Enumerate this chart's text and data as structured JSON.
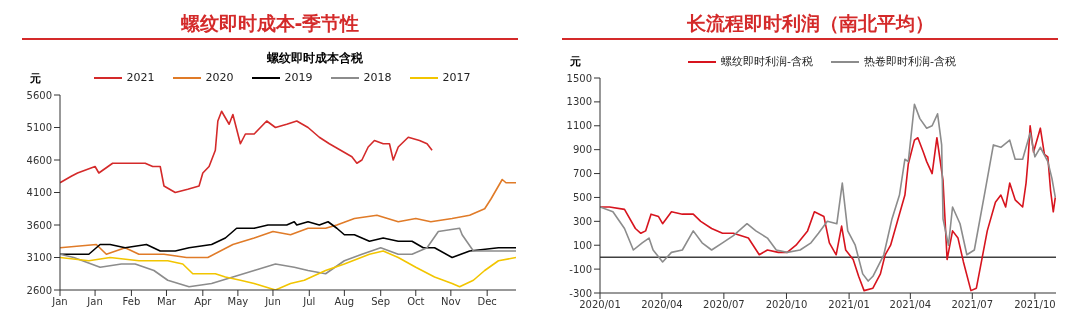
{
  "chart_data": [
    {
      "type": "line",
      "title": "螺纹即时成本-季节性",
      "subtitle": "螺纹即时成本含税",
      "ylabel": "元",
      "legend": "top",
      "marker": "none",
      "line_style": "solid",
      "xlim": [
        "--01-01",
        "--12-31"
      ],
      "xticks": [
        {
          "value": "--01-01",
          "label": "Jan"
        },
        {
          "value": "--01-29",
          "label": "Jan"
        },
        {
          "value": "--02-27",
          "label": "Feb"
        },
        {
          "value": "--03-27",
          "label": "Mar"
        },
        {
          "value": "--04-25",
          "label": "Apr"
        },
        {
          "value": "--05-23",
          "label": "May"
        },
        {
          "value": "--06-20",
          "label": "Jun"
        },
        {
          "value": "--07-19",
          "label": "Jul"
        },
        {
          "value": "--08-16",
          "label": "Aug"
        },
        {
          "value": "--09-14",
          "label": "Sep"
        },
        {
          "value": "--10-12",
          "label": "Oct"
        },
        {
          "value": "--11-09",
          "label": "Nov"
        },
        {
          "value": "--12-08",
          "label": "Dec"
        }
      ],
      "ylim": [
        2600,
        5600
      ],
      "yticks": [
        2600,
        3100,
        3600,
        4100,
        4600,
        5100,
        5600
      ],
      "series": [
        {
          "name": "2021",
          "color": "#d42a2a",
          "x": [
            "--01-01",
            "--01-10",
            "--01-15",
            "--01-29",
            "--02-01",
            "--02-12",
            "--02-27",
            "--03-10",
            "--03-16",
            "--03-22",
            "--03-25",
            "--04-03",
            "--04-13",
            "--04-22",
            "--04-25",
            "--04-30",
            "--05-05",
            "--05-07",
            "--05-10",
            "--05-16",
            "--05-19",
            "--05-25",
            "--05-29",
            "--06-05",
            "--06-15",
            "--06-22",
            "--07-01",
            "--07-09",
            "--07-18",
            "--07-27",
            "--08-04",
            "--08-13",
            "--08-22",
            "--08-26",
            "--08-30",
            "--09-04",
            "--09-09",
            "--09-16",
            "--09-21",
            "--09-24",
            "--09-28",
            "--10-06",
            "--10-15",
            "--10-21",
            "--10-25"
          ],
          "values": [
            4250,
            4350,
            4400,
            4500,
            4400,
            4550,
            4550,
            4550,
            4500,
            4500,
            4200,
            4100,
            4150,
            4200,
            4400,
            4500,
            4750,
            5200,
            5350,
            5150,
            5300,
            4850,
            5000,
            5000,
            5200,
            5100,
            5150,
            5200,
            5100,
            4950,
            4850,
            4750,
            4650,
            4550,
            4600,
            4800,
            4900,
            4850,
            4850,
            4600,
            4800,
            4950,
            4900,
            4850,
            4750
          ]
        },
        {
          "name": "2020",
          "color": "#e07b28",
          "x": [
            "--01-01",
            "--01-30",
            "--02-07",
            "--02-22",
            "--03-05",
            "--03-25",
            "--04-12",
            "--04-29",
            "--05-19",
            "--06-05",
            "--06-20",
            "--07-04",
            "--07-18",
            "--08-01",
            "--08-10",
            "--08-24",
            "--09-11",
            "--09-28",
            "--10-12",
            "--10-24",
            "--11-10",
            "--11-24",
            "--12-06",
            "--12-11",
            "--12-17",
            "--12-20",
            "--12-23",
            "--12-31"
          ],
          "values": [
            3250,
            3300,
            3150,
            3250,
            3150,
            3150,
            3100,
            3100,
            3300,
            3400,
            3500,
            3450,
            3550,
            3550,
            3600,
            3700,
            3750,
            3650,
            3700,
            3650,
            3700,
            3750,
            3850,
            4000,
            4200,
            4300,
            4250,
            4250
          ]
        },
        {
          "name": "2019",
          "color": "#000000",
          "x": [
            "--01-01",
            "--01-07",
            "--01-24",
            "--02-02",
            "--02-10",
            "--02-22",
            "--03-11",
            "--03-22",
            "--04-03",
            "--04-14",
            "--05-02",
            "--05-13",
            "--05-22",
            "--06-05",
            "--06-16",
            "--07-01",
            "--07-07",
            "--07-09",
            "--07-18",
            "--07-27",
            "--08-03",
            "--08-10",
            "--08-16",
            "--08-24",
            "--09-05",
            "--09-16",
            "--09-28",
            "--10-09",
            "--10-18",
            "--10-27",
            "--11-10",
            "--11-24",
            "--12-17",
            "--12-31"
          ],
          "values": [
            3150,
            3150,
            3150,
            3300,
            3300,
            3250,
            3300,
            3200,
            3200,
            3250,
            3300,
            3400,
            3550,
            3550,
            3600,
            3600,
            3650,
            3600,
            3650,
            3600,
            3650,
            3550,
            3450,
            3450,
            3350,
            3400,
            3350,
            3350,
            3250,
            3250,
            3100,
            3200,
            3250,
            3250
          ]
        },
        {
          "name": "2018",
          "color": "#8c8c8c",
          "x": [
            "--01-01",
            "--01-12",
            "--02-02",
            "--02-19",
            "--03-02",
            "--03-17",
            "--03-28",
            "--04-14",
            "--05-02",
            "--05-19",
            "--06-05",
            "--06-22",
            "--07-07",
            "--07-18",
            "--08-01",
            "--08-16",
            "--08-30",
            "--09-14",
            "--09-28",
            "--10-09",
            "--10-21",
            "--10-30",
            "--11-16",
            "--11-18",
            "--11-27",
            "--12-17",
            "--12-31"
          ],
          "values": [
            3150,
            3100,
            2950,
            3000,
            3000,
            2900,
            2750,
            2650,
            2700,
            2800,
            2900,
            3000,
            2950,
            2900,
            2850,
            3050,
            3150,
            3250,
            3150,
            3150,
            3250,
            3500,
            3550,
            3450,
            3200,
            3200,
            3200
          ]
        },
        {
          "name": "2017",
          "color": "#f2c500",
          "x": [
            "--01-01",
            "--01-24",
            "--02-10",
            "--03-05",
            "--03-28",
            "--04-09",
            "--04-17",
            "--05-05",
            "--05-13",
            "--05-25",
            "--06-05",
            "--06-22",
            "--07-04",
            "--07-15",
            "--08-01",
            "--08-16",
            "--09-05",
            "--09-16",
            "--09-28",
            "--10-12",
            "--10-27",
            "--11-10",
            "--11-16",
            "--11-27",
            "--12-06",
            "--12-17",
            "--12-31"
          ],
          "values": [
            3100,
            3050,
            3100,
            3050,
            3050,
            3000,
            2850,
            2850,
            2800,
            2750,
            2700,
            2600,
            2700,
            2750,
            2900,
            3000,
            3150,
            3200,
            3100,
            2950,
            2800,
            2700,
            2650,
            2750,
            2900,
            3050,
            3100
          ]
        }
      ]
    },
    {
      "type": "line",
      "title": "长流程即时利润（南北平均）",
      "ylabel": "元",
      "legend": "top",
      "marker": "none",
      "line_style": "solid",
      "xlim": [
        "2020-01-01",
        "2021-11-01"
      ],
      "xticks": [
        {
          "value": "2020-01",
          "label": "2020/01"
        },
        {
          "value": "2020-04",
          "label": "2020/04"
        },
        {
          "value": "2020-07",
          "label": "2020/07"
        },
        {
          "value": "2020-10",
          "label": "2020/10"
        },
        {
          "value": "2021-01",
          "label": "2021/01"
        },
        {
          "value": "2021-04",
          "label": "2021/04"
        },
        {
          "value": "2021-07",
          "label": "2021/07"
        },
        {
          "value": "2021-10",
          "label": "2021/10"
        }
      ],
      "ylim": [
        -300,
        1500
      ],
      "yticks": [
        -300,
        -100,
        100,
        300,
        500,
        700,
        900,
        1100,
        1300,
        1500
      ],
      "ref_lines": [
        {
          "axis": "y",
          "value": 0,
          "color": "#404040"
        }
      ],
      "series": [
        {
          "name": "螺纹即时利润-含税",
          "color": "#d7141e",
          "x": [
            "2020-01-01",
            "2020-01-15",
            "2020-02-06",
            "2020-02-22",
            "2020-03-01",
            "2020-03-08",
            "2020-03-16",
            "2020-03-27",
            "2020-04-02",
            "2020-04-15",
            "2020-05-01",
            "2020-05-17",
            "2020-05-28",
            "2020-06-13",
            "2020-06-29",
            "2020-07-15",
            "2020-08-06",
            "2020-08-22",
            "2020-09-03",
            "2020-09-19",
            "2020-10-02",
            "2020-10-15",
            "2020-11-01",
            "2020-11-11",
            "2020-11-25",
            "2020-12-03",
            "2020-12-13",
            "2020-12-21",
            "2020-12-27",
            "2021-01-07",
            "2021-01-15",
            "2021-01-23",
            "2021-02-05",
            "2021-02-16",
            "2021-02-23",
            "2021-03-03",
            "2021-03-13",
            "2021-03-24",
            "2021-03-29",
            "2021-04-07",
            "2021-04-12",
            "2021-04-20",
            "2021-04-25",
            "2021-05-03",
            "2021-05-10",
            "2021-05-19",
            "2021-05-25",
            "2021-06-02",
            "2021-06-10",
            "2021-06-18",
            "2021-06-29",
            "2021-07-07",
            "2021-07-15",
            "2021-07-23",
            "2021-08-04",
            "2021-08-12",
            "2021-08-19",
            "2021-08-25",
            "2021-09-02",
            "2021-09-13",
            "2021-09-18",
            "2021-09-21",
            "2021-09-24",
            "2021-09-29",
            "2021-10-09",
            "2021-10-15",
            "2021-10-20",
            "2021-10-24",
            "2021-10-28",
            "2021-10-31"
          ],
          "values": [
            420,
            420,
            400,
            240,
            200,
            220,
            360,
            340,
            280,
            380,
            360,
            360,
            300,
            240,
            200,
            200,
            160,
            20,
            60,
            40,
            40,
            100,
            220,
            380,
            340,
            120,
            20,
            260,
            60,
            -20,
            -160,
            -280,
            -260,
            -140,
            20,
            100,
            300,
            520,
            780,
            980,
            1000,
            880,
            800,
            700,
            1000,
            640,
            -20,
            220,
            160,
            -40,
            -280,
            -260,
            -20,
            220,
            460,
            520,
            420,
            620,
            480,
            420,
            620,
            820,
            1100,
            880,
            1080,
            860,
            840,
            560,
            380,
            500
          ]
        },
        {
          "name": "热卷即时利润-含税",
          "color": "#8c8c8c",
          "x": [
            "2020-01-01",
            "2020-01-20",
            "2020-02-06",
            "2020-02-19",
            "2020-03-03",
            "2020-03-13",
            "2020-03-19",
            "2020-04-02",
            "2020-04-15",
            "2020-05-01",
            "2020-05-17",
            "2020-05-30",
            "2020-06-13",
            "2020-06-29",
            "2020-07-15",
            "2020-08-04",
            "2020-08-17",
            "2020-09-03",
            "2020-09-16",
            "2020-10-02",
            "2020-10-21",
            "2020-11-06",
            "2020-11-17",
            "2020-11-30",
            "2020-12-14",
            "2020-12-22",
            "2020-12-30",
            "2021-01-10",
            "2021-01-21",
            "2021-01-29",
            "2021-02-05",
            "2021-02-21",
            "2021-03-05",
            "2021-03-16",
            "2021-03-24",
            "2021-03-29",
            "2021-04-07",
            "2021-04-15",
            "2021-04-25",
            "2021-05-03",
            "2021-05-11",
            "2021-05-17",
            "2021-05-19",
            "2021-05-27",
            "2021-06-02",
            "2021-06-13",
            "2021-06-23",
            "2021-07-04",
            "2021-07-20",
            "2021-08-01",
            "2021-08-12",
            "2021-08-25",
            "2021-09-02",
            "2021-09-13",
            "2021-09-24",
            "2021-10-01",
            "2021-10-09",
            "2021-10-20",
            "2021-10-26",
            "2021-10-31"
          ],
          "values": [
            420,
            380,
            240,
            60,
            120,
            160,
            60,
            -40,
            40,
            60,
            220,
            120,
            60,
            120,
            180,
            280,
            220,
            160,
            60,
            40,
            60,
            120,
            200,
            300,
            280,
            620,
            220,
            100,
            -140,
            -200,
            -160,
            20,
            320,
            520,
            820,
            800,
            1280,
            1160,
            1080,
            1100,
            1200,
            940,
            320,
            100,
            420,
            280,
            20,
            60,
            560,
            940,
            920,
            980,
            820,
            820,
            1040,
            840,
            920,
            800,
            660,
            500
          ]
        }
      ]
    }
  ]
}
